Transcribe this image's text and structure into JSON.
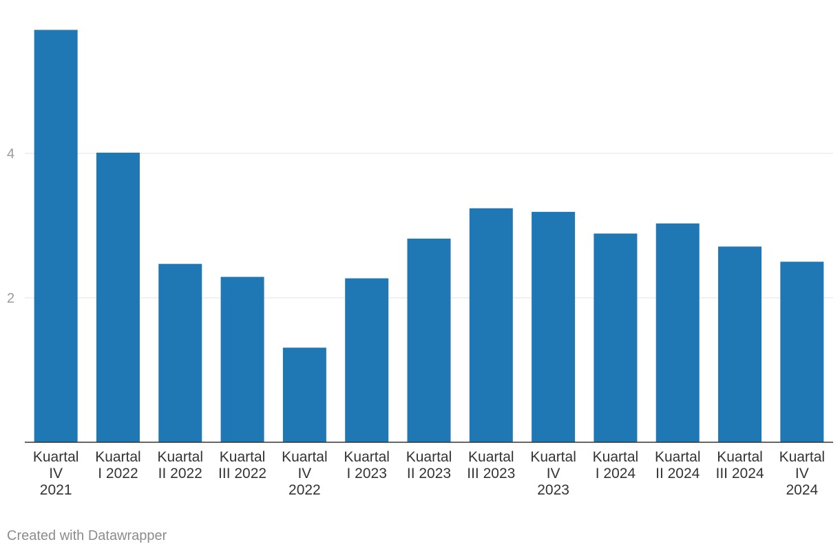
{
  "chart_data": {
    "type": "bar",
    "categories": [
      [
        "Kuartal",
        "IV",
        "2021"
      ],
      [
        "Kuartal",
        "I 2022"
      ],
      [
        "Kuartal",
        "II 2022"
      ],
      [
        "Kuartal",
        "III 2022"
      ],
      [
        "Kuartal",
        "IV",
        "2022"
      ],
      [
        "Kuartal",
        "I 2023"
      ],
      [
        "Kuartal",
        "II 2023"
      ],
      [
        "Kuartal",
        "III 2023"
      ],
      [
        "Kuartal",
        "IV",
        "2023"
      ],
      [
        "Kuartal",
        "I 2024"
      ],
      [
        "Kuartal",
        "II 2024"
      ],
      [
        "Kuartal",
        "III 2024"
      ],
      [
        "Kuartal",
        "IV",
        "2024"
      ]
    ],
    "values": [
      5.71,
      4.01,
      2.47,
      2.29,
      1.31,
      2.27,
      2.82,
      3.24,
      3.19,
      2.89,
      3.03,
      2.71,
      2.5
    ],
    "yticks": [
      2,
      4
    ],
    "ylim": [
      0,
      6.1
    ],
    "bar_color": "#1f77b4",
    "grid": true,
    "legend": "none"
  },
  "footer": {
    "credit": "Created with Datawrapper"
  }
}
